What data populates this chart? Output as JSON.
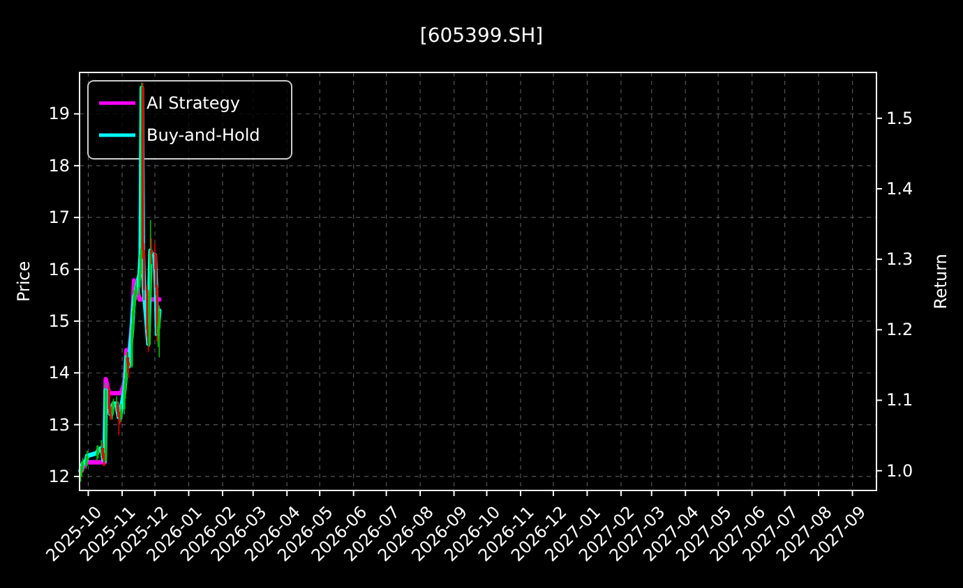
{
  "chart_data": {
    "type": "candlestick",
    "title": "[605399.SH]",
    "ylabel": "Price",
    "y2label": "Return",
    "x": [
      "2025-09-24",
      "2025-09-25",
      "2025-09-26",
      "2025-09-29",
      "2025-09-30",
      "2025-10-09",
      "2025-10-10",
      "2025-10-13",
      "2025-10-14",
      "2025-10-15",
      "2025-10-16",
      "2025-10-17",
      "2025-10-20",
      "2025-10-21",
      "2025-10-22",
      "2025-10-23",
      "2025-10-24",
      "2025-10-27",
      "2025-10-28",
      "2025-10-29",
      "2025-10-30",
      "2025-10-31",
      "2025-11-03",
      "2025-11-04",
      "2025-11-05",
      "2025-11-06",
      "2025-11-07",
      "2025-11-10",
      "2025-11-11",
      "2025-11-12",
      "2025-11-13",
      "2025-11-14",
      "2025-11-17",
      "2025-11-18",
      "2025-11-19",
      "2025-11-20",
      "2025-11-21",
      "2025-11-24",
      "2025-11-25",
      "2025-11-26",
      "2025-11-27",
      "2025-11-28",
      "2025-12-01",
      "2025-12-02",
      "2025-12-03",
      "2025-12-04",
      "2025-12-05"
    ],
    "ohlc": [
      [
        12.0,
        12.2,
        11.9,
        12.1
      ],
      [
        12.1,
        12.3,
        12.0,
        12.19
      ],
      [
        12.19,
        12.35,
        12.1,
        12.25
      ],
      [
        12.25,
        12.4,
        12.15,
        12.3
      ],
      [
        12.3,
        12.5,
        12.2,
        12.4
      ],
      [
        12.4,
        12.6,
        12.3,
        12.45
      ],
      [
        12.45,
        12.6,
        12.35,
        12.5
      ],
      [
        12.5,
        12.7,
        12.4,
        12.55
      ],
      [
        12.55,
        12.65,
        12.35,
        12.45
      ],
      [
        12.45,
        12.55,
        12.2,
        12.32
      ],
      [
        12.32,
        12.45,
        12.2,
        12.3
      ],
      [
        12.3,
        13.8,
        12.3,
        13.67
      ],
      [
        13.67,
        13.75,
        13.2,
        13.3
      ],
      [
        13.3,
        13.4,
        13.1,
        13.22
      ],
      [
        13.22,
        13.35,
        13.1,
        13.2
      ],
      [
        13.2,
        13.45,
        13.1,
        13.35
      ],
      [
        13.35,
        13.5,
        13.25,
        13.4
      ],
      [
        13.4,
        13.55,
        13.3,
        13.4
      ],
      [
        13.4,
        13.45,
        13.15,
        13.25
      ],
      [
        13.25,
        13.35,
        12.8,
        13.15
      ],
      [
        13.15,
        13.25,
        13.0,
        13.13
      ],
      [
        13.13,
        13.4,
        13.05,
        13.3
      ],
      [
        13.3,
        13.8,
        13.2,
        13.67
      ],
      [
        13.67,
        14.0,
        13.5,
        13.9
      ],
      [
        13.9,
        14.4,
        13.8,
        14.3
      ],
      [
        14.3,
        14.4,
        14.0,
        14.2
      ],
      [
        14.2,
        14.3,
        13.9,
        14.13
      ],
      [
        14.13,
        14.95,
        14.1,
        14.84
      ],
      [
        14.84,
        15.3,
        14.7,
        15.2
      ],
      [
        15.2,
        15.6,
        15.1,
        15.48
      ],
      [
        15.48,
        15.7,
        15.3,
        15.5
      ],
      [
        15.5,
        15.8,
        15.4,
        15.65
      ],
      [
        15.65,
        16.0,
        15.5,
        15.9
      ],
      [
        15.9,
        16.4,
        15.8,
        16.28
      ],
      [
        16.28,
        19.6,
        16.2,
        19.52
      ],
      [
        19.52,
        19.6,
        16.2,
        16.37
      ],
      [
        16.37,
        16.5,
        15.4,
        15.6
      ],
      [
        15.6,
        15.7,
        14.7,
        14.84
      ],
      [
        14.84,
        14.9,
        14.4,
        14.57
      ],
      [
        14.57,
        15.6,
        14.5,
        15.5
      ],
      [
        15.5,
        16.95,
        15.4,
        16.37
      ],
      [
        16.37,
        16.6,
        16.1,
        16.3
      ],
      [
        16.3,
        16.5,
        16.0,
        16.28
      ],
      [
        16.28,
        16.3,
        15.5,
        15.65
      ],
      [
        15.65,
        15.7,
        14.6,
        14.75
      ],
      [
        14.75,
        15.0,
        14.5,
        14.9
      ],
      [
        14.9,
        15.3,
        14.3,
        15.2
      ]
    ],
    "series": [
      {
        "name": "AI Strategy",
        "type": "line",
        "axis": "y2",
        "color": "#ff00ff",
        "values": [
          1.0,
          1.0,
          1.005,
          1.012,
          1.012,
          1.012,
          1.012,
          1.012,
          1.012,
          1.012,
          1.012,
          1.13,
          1.11,
          1.11,
          1.11,
          1.11,
          1.11,
          1.11,
          1.11,
          1.11,
          1.11,
          1.11,
          1.124,
          1.141,
          1.171,
          1.163,
          1.158,
          1.21,
          1.237,
          1.27,
          1.26,
          1.26,
          1.243,
          1.243,
          1.243,
          1.243,
          1.243,
          1.243,
          1.243,
          1.243,
          1.243,
          1.243,
          1.243,
          1.243,
          1.243,
          1.243,
          1.243
        ]
      },
      {
        "name": "Buy-and-Hold",
        "type": "line",
        "axis": "y2",
        "color": "#00ffff",
        "values": [
          1.0,
          1.006,
          1.01,
          1.014,
          1.021,
          1.025,
          1.029,
          1.032,
          1.025,
          1.015,
          1.014,
          1.114,
          1.087,
          1.081,
          1.08,
          1.091,
          1.095,
          1.095,
          1.084,
          1.076,
          1.075,
          1.087,
          1.114,
          1.131,
          1.161,
          1.153,
          1.148,
          1.2,
          1.227,
          1.247,
          1.249,
          1.26,
          1.278,
          1.306,
          1.543,
          1.312,
          1.256,
          1.2,
          1.18,
          1.249,
          1.312,
          1.307,
          1.306,
          1.26,
          1.194,
          1.205,
          1.227
        ]
      }
    ],
    "xlim": [
      "2025-09-23",
      "2027-09-23"
    ],
    "xticks": [
      "2025-10",
      "2025-11",
      "2025-12",
      "2026-01",
      "2026-02",
      "2026-03",
      "2026-04",
      "2026-05",
      "2026-06",
      "2026-07",
      "2026-08",
      "2026-09",
      "2026-10",
      "2026-11",
      "2026-12",
      "2027-01",
      "2027-02",
      "2027-03",
      "2027-04",
      "2027-05",
      "2027-06",
      "2027-07",
      "2027-08",
      "2027-09"
    ],
    "ylim": [
      11.73,
      19.8
    ],
    "yticks": [
      12,
      13,
      14,
      15,
      16,
      17,
      18,
      19
    ],
    "y2lim": [
      0.972,
      1.565
    ],
    "y2ticks": [
      {
        "value": 1,
        "label": "1.0"
      },
      1.1,
      1.2,
      1.3,
      1.4,
      1.5
    ],
    "grid": true,
    "legend": "top left"
  }
}
